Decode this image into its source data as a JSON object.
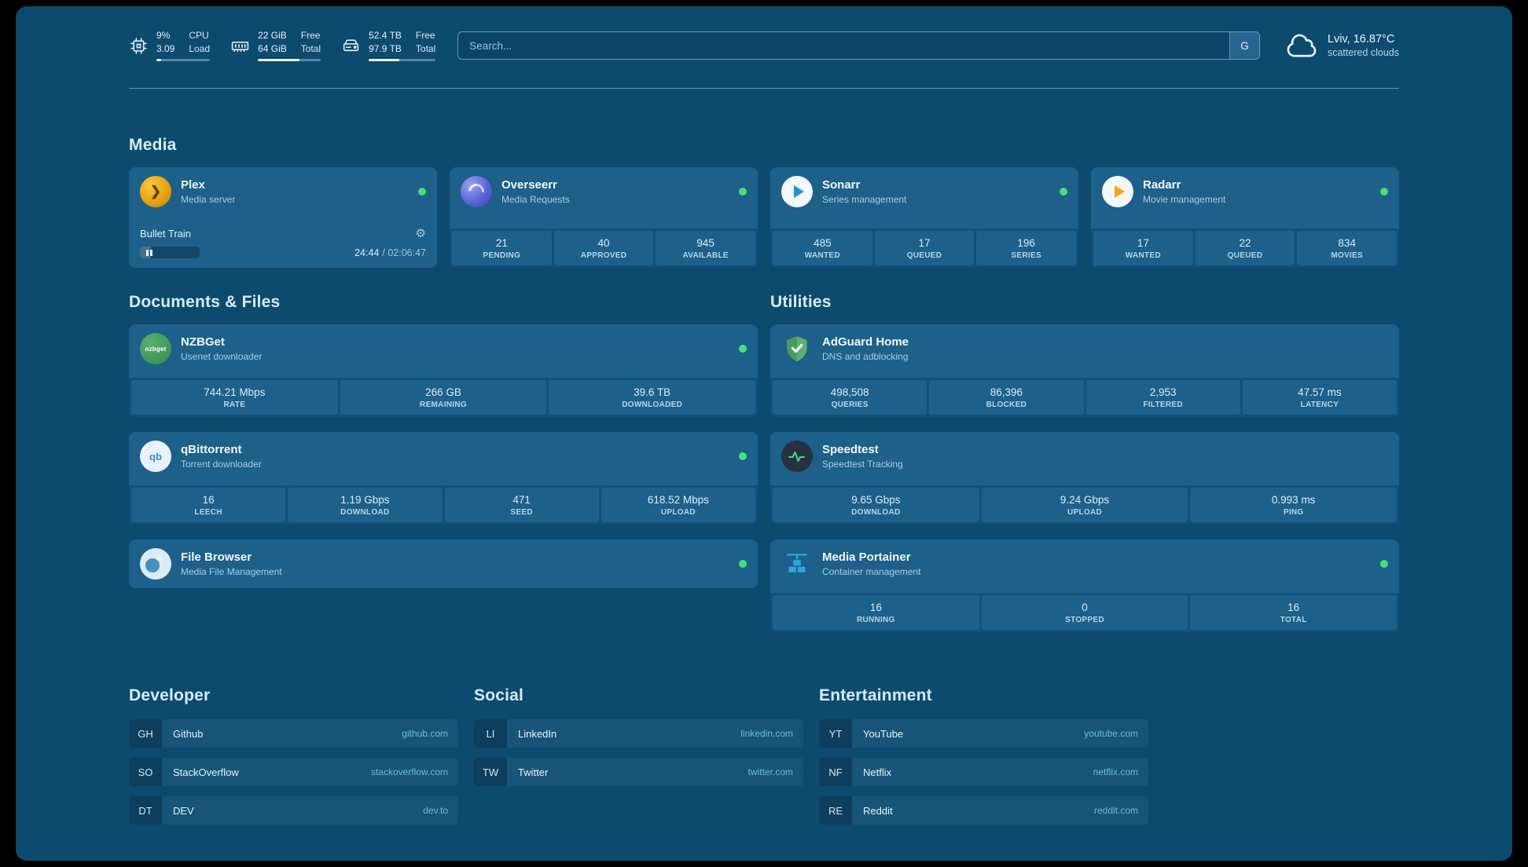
{
  "theme": {
    "background": "#0c4a6e",
    "card": "#1d6089",
    "card_grid": "#11517a",
    "status_online": "#4ade80",
    "link": "#6fb9e0",
    "heading": "#d6edfb",
    "bookmark_row": "#175478",
    "bookmark_abbr": "#0d3e5d"
  },
  "topbar": {
    "resources": [
      {
        "icon": "cpu-icon",
        "rows": [
          {
            "value": "9%",
            "label": "CPU"
          },
          {
            "value": "3.09",
            "label": "Load"
          }
        ],
        "progress_pct": 9
      },
      {
        "icon": "memory-icon",
        "rows": [
          {
            "value": "22 GiB",
            "label": "Free"
          },
          {
            "value": "64 GiB",
            "label": "Total"
          }
        ],
        "progress_pct": 66
      },
      {
        "icon": "disk-icon",
        "rows": [
          {
            "value": "52.4 TB",
            "label": "Free"
          },
          {
            "value": "97.9 TB",
            "label": "Total"
          }
        ],
        "progress_pct": 46
      }
    ],
    "search": {
      "placeholder": "Search...",
      "button_label": "G"
    },
    "weather": {
      "location": "Lviv, 16.87°C",
      "condition": "scattered clouds"
    }
  },
  "media": {
    "title": "Media",
    "cards": {
      "plex": {
        "name": "Plex",
        "subtitle": "Media server",
        "status": "online",
        "now_playing": {
          "title": "Bullet Train",
          "elapsed": "24:44",
          "total_display": "/ 02:06:47",
          "progress_pct": 19
        }
      },
      "overseerr": {
        "name": "Overseerr",
        "subtitle": "Media Requests",
        "status": "online",
        "stats": [
          {
            "value": "21",
            "label": "PENDING"
          },
          {
            "value": "40",
            "label": "APPROVED"
          },
          {
            "value": "945",
            "label": "AVAILABLE"
          }
        ]
      },
      "sonarr": {
        "name": "Sonarr",
        "subtitle": "Series management",
        "status": "online",
        "stats": [
          {
            "value": "485",
            "label": "WANTED"
          },
          {
            "value": "17",
            "label": "QUEUED"
          },
          {
            "value": "196",
            "label": "SERIES"
          }
        ]
      },
      "radarr": {
        "name": "Radarr",
        "subtitle": "Movie management",
        "status": "online",
        "stats": [
          {
            "value": "17",
            "label": "WANTED"
          },
          {
            "value": "22",
            "label": "QUEUED"
          },
          {
            "value": "834",
            "label": "MOVIES"
          }
        ]
      }
    }
  },
  "documents": {
    "title": "Documents & Files",
    "cards": {
      "nzbget": {
        "name": "NZBGet",
        "subtitle": "Usenet downloader",
        "status": "online",
        "icon_text": "nzbget",
        "stats": [
          {
            "value": "744.21 Mbps",
            "label": "RATE"
          },
          {
            "value": "266 GB",
            "label": "REMAINING"
          },
          {
            "value": "39.6 TB",
            "label": "DOWNLOADED"
          }
        ]
      },
      "qbittorrent": {
        "name": "qBittorrent",
        "subtitle": "Torrent downloader",
        "status": "online",
        "icon_text": "qb",
        "stats": [
          {
            "value": "16",
            "label": "LEECH"
          },
          {
            "value": "1.19 Gbps",
            "label": "DOWNLOAD"
          },
          {
            "value": "471",
            "label": "SEED"
          },
          {
            "value": "618.52 Mbps",
            "label": "UPLOAD"
          }
        ]
      },
      "filebrowser": {
        "name": "File Browser",
        "subtitle": "Media File Management",
        "status": "online"
      }
    }
  },
  "utilities": {
    "title": "Utilities",
    "cards": {
      "adguard": {
        "name": "AdGuard Home",
        "subtitle": "DNS and adblocking",
        "stats": [
          {
            "value": "498,508",
            "label": "QUERIES"
          },
          {
            "value": "86,396",
            "label": "BLOCKED"
          },
          {
            "value": "2,953",
            "label": "FILTERED"
          },
          {
            "value": "47.57 ms",
            "label": "LATENCY"
          }
        ]
      },
      "speedtest": {
        "name": "Speedtest",
        "subtitle": "Speedtest Tracking",
        "stats": [
          {
            "value": "9.65 Gbps",
            "label": "DOWNLOAD"
          },
          {
            "value": "9.24 Gbps",
            "label": "UPLOAD"
          },
          {
            "value": "0.993 ms",
            "label": "PING"
          }
        ]
      },
      "portainer": {
        "name": "Media Portainer",
        "subtitle": "Container management",
        "status": "online",
        "stats": [
          {
            "value": "16",
            "label": "RUNNING"
          },
          {
            "value": "0",
            "label": "STOPPED"
          },
          {
            "value": "16",
            "label": "TOTAL"
          }
        ]
      }
    }
  },
  "bookmarks": {
    "developer": {
      "title": "Developer",
      "items": [
        {
          "abbr": "GH",
          "name": "Github",
          "url": "github.com"
        },
        {
          "abbr": "SO",
          "name": "StackOverflow",
          "url": "stackoverflow.com"
        },
        {
          "abbr": "DT",
          "name": "DEV",
          "url": "dev.to"
        }
      ]
    },
    "social": {
      "title": "Social",
      "items": [
        {
          "abbr": "LI",
          "name": "LinkedIn",
          "url": "linkedin.com"
        },
        {
          "abbr": "TW",
          "name": "Twitter",
          "url": "twitter.com"
        }
      ]
    },
    "entertainment": {
      "title": "Entertainment",
      "items": [
        {
          "abbr": "YT",
          "name": "YouTube",
          "url": "youtube.com"
        },
        {
          "abbr": "NF",
          "name": "Netflix",
          "url": "netflix.com"
        },
        {
          "abbr": "RE",
          "name": "Reddit",
          "url": "reddit.com"
        }
      ]
    }
  }
}
